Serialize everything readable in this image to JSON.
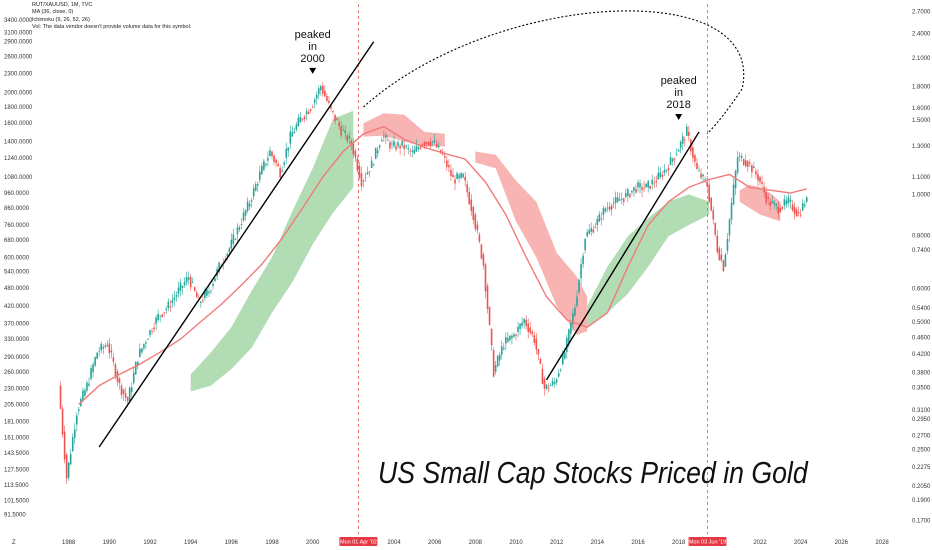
{
  "legend": {
    "symbol": "RUT/XAUUSD, 1M, TVC",
    "ma": "MA (36, close, 0)",
    "ichimoku": "Ichimoku (9, 26, 52, 26)",
    "volume_note": "Vol: The data vendor doesn't provide volume data for this symbol."
  },
  "headline": "US Small Cap Stocks Priced in Gold",
  "colors": {
    "up_candle": "#26a69a",
    "down_candle": "#ef5350",
    "ma_line": "#f07b7b",
    "cloud_bull": "#a5d6a7",
    "cloud_bear": "#f7a6a6",
    "vline": "#ef5350",
    "badge": "#e53945"
  },
  "chart_data": {
    "type": "line",
    "title": "US Small Cap Stocks Priced in Gold",
    "xlabel": "",
    "ylabel": "",
    "grid": false,
    "log_scale": true,
    "x_range": [
      1986,
      2028
    ],
    "left_axis": {
      "ylim": [
        83,
        3500
      ],
      "ticks": [
        "3400.0000",
        "3100.0000",
        "2900.0000",
        "2600.0000",
        "2300.0000",
        "2000.0000",
        "1800.0000",
        "1600.0000",
        "1400.0000",
        "1240.0000",
        "1080.0000",
        "960.0000",
        "860.0000",
        "760.0000",
        "680.0000",
        "600.0000",
        "540.0000",
        "480.0000",
        "420.0000",
        "370.0000",
        "330.0000",
        "290.0000",
        "260.0000",
        "230.0000",
        "205.0000",
        "181.0000",
        "161.0000",
        "143.5000",
        "127.5000",
        "113.5000",
        "101.5000",
        "91.5000"
      ]
    },
    "right_axis": {
      "ylim": [
        0.165,
        2.8
      ],
      "ticks": [
        "2.7000",
        "2.4000",
        "2.1000",
        "1.8000",
        "1.6000",
        "1.5000",
        "1.3000",
        "1.1000",
        "1.0000",
        "0.8000",
        "0.7400",
        "0.6000",
        "0.5400",
        "0.5000",
        "0.4600",
        "0.4200",
        "0.3800",
        "0.3500",
        "0.3100",
        "0.2950",
        "0.2700",
        "0.2500",
        "0.2275",
        "0.2050",
        "0.1900",
        "0.1700"
      ]
    },
    "x_ticks": [
      "1988",
      "1990",
      "1992",
      "1994",
      "1996",
      "1998",
      "2000",
      "2004",
      "2006",
      "2008",
      "2010",
      "2012",
      "2014",
      "2016",
      "2018",
      "2022",
      "2024",
      "2026",
      "2028"
    ],
    "z_label": "Z",
    "price_series": {
      "name": "",
      "x": [
        1987.6,
        1988.0,
        1988.5,
        1989.0,
        1989.5,
        1990.0,
        1990.6,
        1991.0,
        1991.5,
        1992.0,
        1992.5,
        1993.0,
        1993.5,
        1994.0,
        1994.5,
        1995.0,
        1995.5,
        1996.0,
        1996.5,
        1997.0,
        1997.5,
        1998.0,
        1998.5,
        1999.0,
        1999.5,
        2000.0,
        2000.5,
        2001.0,
        2001.5,
        2002.0,
        2002.5,
        2003.0,
        2003.5,
        2004.0,
        2004.5,
        2005.0,
        2005.5,
        2006.0,
        2006.5,
        2007.0,
        2007.5,
        2008.0,
        2008.5,
        2009.0,
        2009.5,
        2010.0,
        2010.5,
        2011.0,
        2011.5,
        2012.0,
        2012.5,
        2013.0,
        2013.5,
        2014.0,
        2014.5,
        2015.0,
        2015.5,
        2016.0,
        2016.5,
        2017.0,
        2017.5,
        2018.0,
        2018.5,
        2019.0,
        2019.5,
        2020.0,
        2020.3,
        2020.6,
        2021.0,
        2021.5,
        2022.0,
        2022.5,
        2023.0,
        2023.5,
        2024.0,
        2024.3
      ],
      "y": [
        235,
        120,
        195,
        235,
        300,
        320,
        235,
        210,
        290,
        340,
        390,
        420,
        470,
        520,
        430,
        470,
        560,
        640,
        760,
        900,
        1100,
        1300,
        1120,
        1450,
        1650,
        1800,
        2100,
        1750,
        1520,
        1380,
        1050,
        1180,
        1460,
        1350,
        1360,
        1280,
        1390,
        1400,
        1260,
        1060,
        1080,
        820,
        570,
        260,
        320,
        340,
        380,
        330,
        230,
        240,
        300,
        420,
        700,
        760,
        860,
        900,
        940,
        1000,
        1000,
        1060,
        1150,
        1300,
        1500,
        1130,
        1020,
        640,
        560,
        790,
        1250,
        1200,
        1080,
        900,
        860,
        900,
        820,
        900
      ]
    },
    "ma_series": {
      "name": "",
      "x": [
        1988.5,
        1989.5,
        1990.5,
        1991.5,
        1992.5,
        1993.5,
        1994.5,
        1995.5,
        1996.5,
        1997.5,
        1998.5,
        1999.5,
        2000.5,
        2001.5,
        2002.5,
        2003.5,
        2004.5,
        2005.5,
        2006.5,
        2007.5,
        2008.5,
        2009.5,
        2010.5,
        2011.5,
        2012.5,
        2013.5,
        2014.5,
        2015.5,
        2016.5,
        2017.5,
        2018.5,
        2019.5,
        2020.5,
        2021.5,
        2022.5,
        2023.5,
        2024.3
      ],
      "y": [
        205,
        235,
        255,
        275,
        300,
        330,
        375,
        425,
        490,
        570,
        690,
        860,
        1080,
        1300,
        1480,
        1560,
        1420,
        1340,
        1280,
        1230,
        1040,
        820,
        600,
        450,
        380,
        360,
        400,
        560,
        760,
        900,
        1000,
        1060,
        1100,
        1000,
        980,
        960,
        990
      ]
    },
    "cloud_bull_segments": [
      {
        "x": [
          1994.0,
          1995.0,
          1996.0,
          1997.0,
          1998.0,
          1999.0,
          2000.0,
          2001.0,
          2002.0
        ],
        "upper": [
          255,
          300,
          360,
          470,
          600,
          840,
          1150,
          1650,
          1750
        ],
        "lower": [
          225,
          235,
          265,
          310,
          400,
          500,
          660,
          830,
          1000
        ]
      },
      {
        "x": [
          2013.5,
          2014.5,
          2015.5,
          2016.5,
          2017.5,
          2018.5,
          2019.5
        ],
        "upper": [
          420,
          560,
          700,
          800,
          900,
          950,
          900
        ],
        "lower": [
          360,
          400,
          460,
          560,
          700,
          760,
          820
        ]
      }
    ],
    "cloud_bear_segments": [
      {
        "x": [
          2002.5,
          2003.5,
          2004.5,
          2005.5,
          2006.5
        ],
        "upper": [
          1600,
          1720,
          1700,
          1500,
          1480
        ],
        "lower": [
          1450,
          1460,
          1400,
          1350,
          1350
        ]
      },
      {
        "x": [
          2008.0,
          2009.0,
          2010.0,
          2011.0,
          2012.0,
          2013.0,
          2013.5
        ],
        "upper": [
          1300,
          1270,
          1050,
          900,
          620,
          520,
          450
        ],
        "lower": [
          1200,
          1150,
          780,
          600,
          420,
          340,
          350
        ]
      },
      {
        "x": [
          2021.0,
          2021.5,
          2022.0,
          2022.5,
          2023.0
        ],
        "upper": [
          980,
          1020,
          1000,
          960,
          900
        ],
        "lower": [
          900,
          860,
          820,
          800,
          780
        ]
      }
    ],
    "annotations": [
      {
        "text_lines": [
          "peaked",
          "in",
          "2000"
        ],
        "x": 2000.0,
        "y": 2100
      },
      {
        "text_lines": [
          "peaked",
          "in",
          "2018"
        ],
        "x": 2018.0,
        "y": 1500
      }
    ],
    "trendlines": [
      {
        "x": [
          1989.5,
          2003.0
        ],
        "y": [
          150,
          2900
        ]
      },
      {
        "x": [
          2011.5,
          2019.0
        ],
        "y": [
          245,
          1500
        ]
      }
    ],
    "vertical_markers": [
      {
        "x": 2002.25,
        "label": "Mon 01 Apr '02"
      },
      {
        "x": 2019.42,
        "label": "Mon 03 Jun '19"
      }
    ],
    "dotted_arc_from_to": [
      [
        2002.5,
        1800
      ],
      [
        2019.4,
        1480
      ]
    ]
  }
}
